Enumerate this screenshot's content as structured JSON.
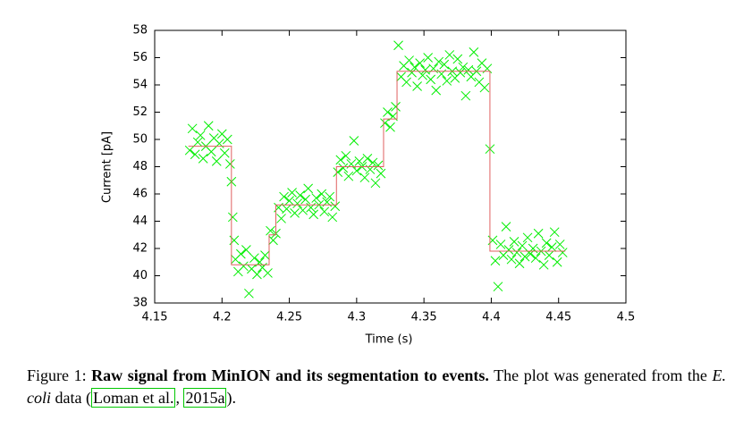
{
  "chart_data": {
    "type": "scatter",
    "xlabel": "Time (s)",
    "ylabel": "Current [pA]",
    "xlim": [
      4.15,
      4.5
    ],
    "xticks": [
      4.15,
      4.2,
      4.25,
      4.3,
      4.35,
      4.4,
      4.45,
      4.5
    ],
    "ylim": [
      38,
      58
    ],
    "yticks": [
      38,
      40,
      42,
      44,
      46,
      48,
      50,
      52,
      54,
      56,
      58
    ],
    "series": [
      {
        "type": "scatter",
        "color": "#00ee00",
        "x": [
          4.176,
          4.178,
          4.18,
          4.182,
          4.184,
          4.186,
          4.188,
          4.19,
          4.192,
          4.194,
          4.196,
          4.198,
          4.2,
          4.202,
          4.204,
          4.206,
          4.207,
          4.208,
          4.209,
          4.21,
          4.212,
          4.214,
          4.216,
          4.218,
          4.22,
          4.222,
          4.224,
          4.226,
          4.228,
          4.23,
          4.232,
          4.234,
          4.236,
          4.238,
          4.24,
          4.242,
          4.244,
          4.246,
          4.248,
          4.25,
          4.252,
          4.254,
          4.256,
          4.258,
          4.26,
          4.262,
          4.264,
          4.266,
          4.268,
          4.27,
          4.272,
          4.274,
          4.276,
          4.278,
          4.28,
          4.282,
          4.284,
          4.286,
          4.288,
          4.29,
          4.292,
          4.294,
          4.296,
          4.298,
          4.3,
          4.302,
          4.304,
          4.306,
          4.308,
          4.31,
          4.312,
          4.314,
          4.316,
          4.318,
          4.321,
          4.323,
          4.325,
          4.327,
          4.329,
          4.331,
          4.333,
          4.335,
          4.337,
          4.339,
          4.341,
          4.343,
          4.345,
          4.347,
          4.349,
          4.351,
          4.353,
          4.355,
          4.357,
          4.359,
          4.361,
          4.363,
          4.365,
          4.367,
          4.369,
          4.371,
          4.373,
          4.375,
          4.377,
          4.379,
          4.381,
          4.383,
          4.385,
          4.387,
          4.389,
          4.391,
          4.393,
          4.395,
          4.397,
          4.399,
          4.401,
          4.403,
          4.405,
          4.407,
          4.409,
          4.411,
          4.413,
          4.415,
          4.417,
          4.419,
          4.421,
          4.423,
          4.425,
          4.427,
          4.429,
          4.431,
          4.433,
          4.435,
          4.437,
          4.439,
          4.441,
          4.443,
          4.445,
          4.447,
          4.449,
          4.451,
          4.453
        ],
        "values": [
          49.2,
          50.8,
          48.9,
          49.8,
          50.3,
          48.6,
          49.5,
          51.0,
          49.1,
          50.1,
          48.4,
          49.7,
          50.4,
          49.0,
          50.0,
          48.2,
          46.9,
          44.3,
          42.6,
          41.2,
          40.3,
          41.6,
          40.7,
          41.9,
          38.7,
          40.5,
          41.3,
          40.1,
          41.0,
          40.6,
          41.5,
          40.2,
          43.3,
          42.6,
          43.1,
          45.0,
          44.2,
          45.8,
          44.9,
          45.5,
          46.1,
          44.6,
          45.3,
          45.9,
          44.8,
          45.6,
          46.4,
          45.0,
          44.5,
          45.7,
          45.2,
          46.0,
          44.7,
          45.4,
          45.8,
          44.3,
          45.1,
          47.6,
          48.5,
          47.9,
          48.8,
          47.3,
          48.2,
          49.9,
          47.7,
          48.4,
          48.0,
          47.2,
          48.6,
          47.8,
          48.3,
          46.8,
          48.1,
          47.5,
          51.2,
          52.0,
          50.9,
          51.7,
          52.4,
          56.9,
          54.6,
          55.4,
          54.2,
          55.8,
          54.9,
          55.3,
          53.9,
          55.6,
          54.7,
          55.1,
          56.0,
          54.4,
          55.2,
          53.6,
          55.7,
          54.8,
          55.5,
          54.3,
          56.2,
          55.0,
          54.5,
          55.9,
          54.9,
          55.3,
          53.2,
          55.1,
          54.6,
          56.4,
          55.0,
          54.2,
          55.6,
          53.8,
          55.2,
          49.3,
          42.6,
          41.1,
          39.2,
          42.3,
          41.5,
          43.6,
          41.9,
          41.2,
          42.5,
          41.7,
          40.9,
          42.2,
          41.4,
          42.8,
          41.6,
          42.0,
          41.3,
          43.1,
          41.8,
          40.8,
          42.4,
          41.5,
          42.1,
          43.2,
          41.0,
          42.3,
          41.7
        ]
      },
      {
        "type": "line",
        "color": "#e06060",
        "x": [
          4.175,
          4.207,
          4.207,
          4.235,
          4.235,
          4.24,
          4.24,
          4.285,
          4.285,
          4.32,
          4.32,
          4.33,
          4.33,
          4.399,
          4.399,
          4.455
        ],
        "values": [
          49.5,
          49.5,
          40.8,
          40.8,
          43,
          43,
          45.2,
          45.2,
          48,
          48,
          51.5,
          51.5,
          55,
          55,
          41.8,
          41.8
        ]
      }
    ]
  },
  "caption": {
    "label": "Figure 1:",
    "bold": "Raw signal from MinION and its segmentation to events.",
    "text1": "The plot was generated from the",
    "italic": "E. coli",
    "text2": "data (",
    "cite1": "Loman et al.",
    "sep": ",",
    "cite2": "2015a",
    "end": ")."
  }
}
